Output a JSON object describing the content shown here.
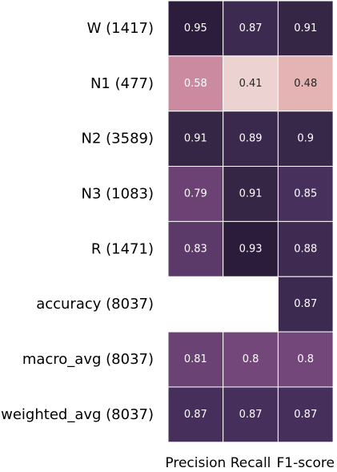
{
  "chart_data": {
    "type": "heatmap",
    "rows": [
      "W (1417)",
      "N1 (477)",
      "N2 (3589)",
      "N3 (1083)",
      "R (1471)",
      "accuracy (8037)",
      "macro_avg (8037)",
      "weighted_avg (8037)"
    ],
    "columns": [
      "Precision",
      "Recall",
      "F1-score"
    ],
    "values": [
      [
        0.95,
        0.87,
        0.91
      ],
      [
        0.58,
        0.41,
        0.48
      ],
      [
        0.91,
        0.89,
        0.9
      ],
      [
        0.79,
        0.91,
        0.85
      ],
      [
        0.83,
        0.93,
        0.88
      ],
      [
        null,
        null,
        0.87
      ],
      [
        0.81,
        0.8,
        0.8
      ],
      [
        0.87,
        0.87,
        0.87
      ]
    ],
    "colors": [
      [
        "#2c1d3c",
        "#3d2a50",
        "#352646"
      ],
      [
        "#cc8aa0",
        "#ecd3d1",
        "#e4b3b4"
      ],
      [
        "#352646",
        "#3a294d",
        "#372849"
      ],
      [
        "#6c4274",
        "#352646",
        "#47305b"
      ],
      [
        "#5b3a6a",
        "#2b1c3b",
        "#3f2b52"
      ],
      [
        null,
        null,
        "#3d2a50"
      ],
      [
        "#6a4273",
        "#734779",
        "#734779"
      ],
      [
        "#472f5b",
        "#472f5b",
        "#472f5b"
      ]
    ],
    "text_colors": [
      [
        "#ffffff",
        "#ffffff",
        "#ffffff"
      ],
      [
        "#ffffff",
        "#262626",
        "#262626"
      ],
      [
        "#ffffff",
        "#ffffff",
        "#ffffff"
      ],
      [
        "#ffffff",
        "#ffffff",
        "#ffffff"
      ],
      [
        "#ffffff",
        "#ffffff",
        "#ffffff"
      ],
      [
        null,
        null,
        "#ffffff"
      ],
      [
        "#ffffff",
        "#ffffff",
        "#ffffff"
      ],
      [
        "#ffffff",
        "#ffffff",
        "#ffffff"
      ]
    ],
    "colorbar": false,
    "grid": true
  }
}
